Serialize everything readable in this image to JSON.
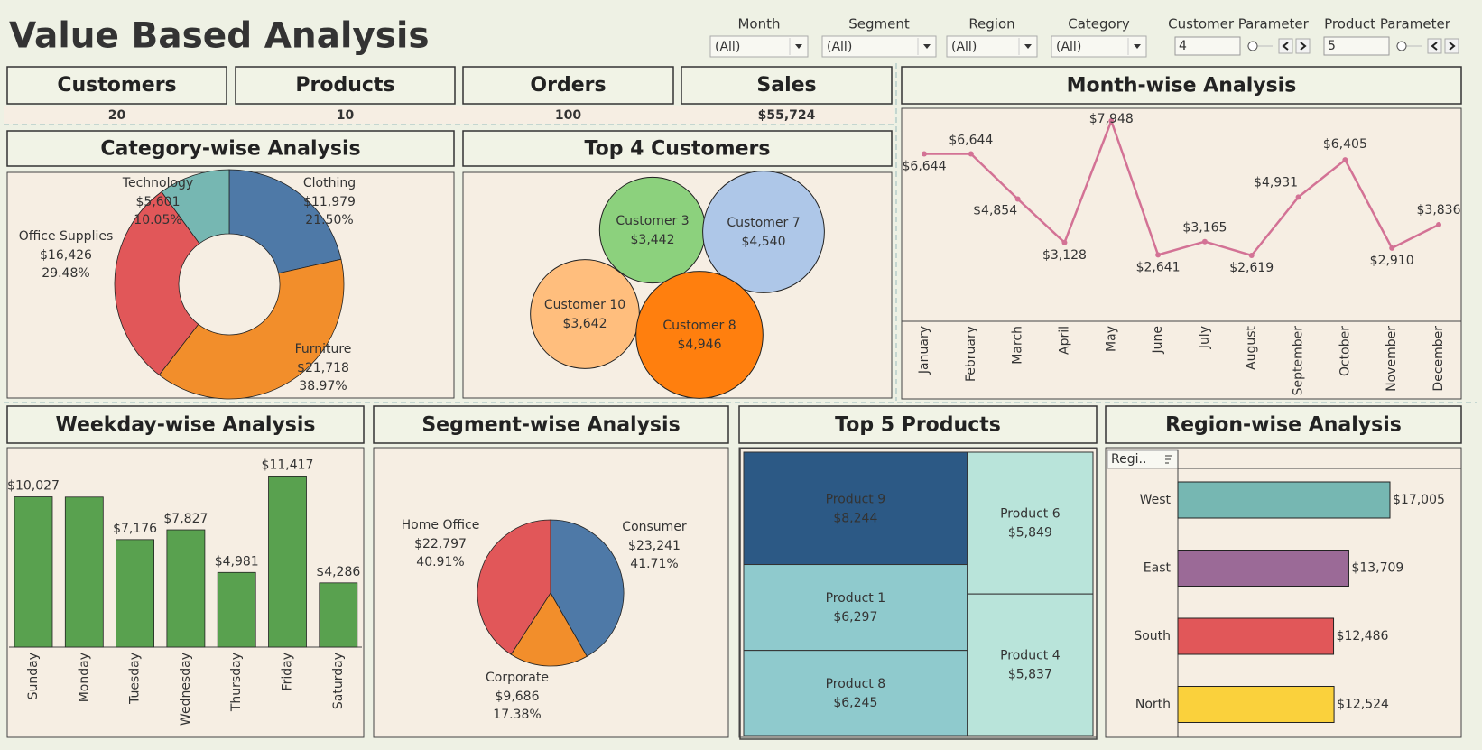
{
  "title": "Value Based Analysis",
  "filters": [
    {
      "label": "Month",
      "value": "(All)"
    },
    {
      "label": "Segment",
      "value": "(All)"
    },
    {
      "label": "Region",
      "value": "(All)"
    },
    {
      "label": "Category",
      "value": "(All)"
    }
  ],
  "parameters": [
    {
      "label": "Customer Parameter",
      "value": 4
    },
    {
      "label": "Product Parameter",
      "value": 5
    }
  ],
  "kpis": [
    {
      "label": "Customers",
      "value": 20
    },
    {
      "label": "Products",
      "value": 10
    },
    {
      "label": "Orders",
      "value": 100
    },
    {
      "label": "Sales",
      "value": 55724,
      "value_label": "$55,724"
    }
  ],
  "chart_data": [
    {
      "type": "pie",
      "donut": true,
      "title": "Category-wise Analysis",
      "categories": [
        "Clothing",
        "Furniture",
        "Office Supplies",
        "Technology"
      ],
      "values": [
        11979,
        21718,
        16426,
        5601
      ],
      "value_labels": [
        "$11,979",
        "$21,718",
        "$16,426",
        "$5,601"
      ],
      "percents": [
        21.5,
        38.97,
        29.48,
        10.05
      ],
      "percent_labels": [
        "21.50%",
        "38.97%",
        "29.48%",
        "10.05%"
      ],
      "colors": [
        "#4e79a7",
        "#f28e2b",
        "#e15759",
        "#76b7b2"
      ]
    },
    {
      "type": "bubble",
      "title": "Top 4 Customers",
      "categories": [
        "Customer 3",
        "Customer 7",
        "Customer 10",
        "Customer 8"
      ],
      "values": [
        3442,
        4540,
        3642,
        4946
      ],
      "value_labels": [
        "$3,442",
        "$4,540",
        "$3,642",
        "$4,946"
      ],
      "colors": [
        "#8cd17d",
        "#aec7e8",
        "#ffbe7d",
        "#ff7f0e"
      ]
    },
    {
      "type": "line",
      "title": "Month-wise Analysis",
      "categories": [
        "January",
        "February",
        "March",
        "April",
        "May",
        "June",
        "July",
        "August",
        "September",
        "October",
        "November",
        "December"
      ],
      "values": [
        6644,
        6644,
        4854,
        3128,
        7948,
        2641,
        3165,
        2619,
        4931,
        6405,
        2910,
        3836
      ],
      "value_labels": [
        "$6,644",
        "$6,644",
        "$4,854",
        "$3,128",
        "$7,948",
        "$2,641",
        "$3,165",
        "$2,619",
        "$4,931",
        "$6,405",
        "$2,910",
        "$3,836"
      ],
      "color": "#d37295"
    },
    {
      "type": "bar",
      "title": "Weekday-wise Analysis",
      "categories": [
        "Sunday",
        "Monday",
        "Tuesday",
        "Wednesday",
        "Thursday",
        "Friday",
        "Saturday"
      ],
      "values": [
        10027,
        10010,
        7176,
        7827,
        4981,
        11417,
        4286
      ],
      "value_labels": [
        "$10,027",
        null,
        "$7,176",
        "$7,827",
        "$4,981",
        "$11,417",
        "$4,286"
      ],
      "color": "#59a14f"
    },
    {
      "type": "pie",
      "donut": false,
      "title": "Segment-wise Analysis",
      "categories": [
        "Consumer",
        "Corporate",
        "Home Office"
      ],
      "values": [
        23241,
        9686,
        22797
      ],
      "value_labels": [
        "$23,241",
        "$9,686",
        "$22,797"
      ],
      "percents": [
        41.71,
        17.38,
        40.91
      ],
      "percent_labels": [
        "41.71%",
        "17.38%",
        "40.91%"
      ],
      "colors": [
        "#4e79a7",
        "#f28e2b",
        "#e15759"
      ]
    },
    {
      "type": "treemap",
      "title": "Top 5 Products",
      "categories": [
        "Product 9",
        "Product 1",
        "Product 8",
        "Product 6",
        "Product 4"
      ],
      "values": [
        8244,
        6297,
        6245,
        5849,
        5837
      ],
      "value_labels": [
        "$8,244",
        "$6,297",
        "$6,245",
        "$5,849",
        "$5,837"
      ],
      "colors": [
        "#2c5985",
        "#8fcacd",
        "#8fcacd",
        "#b9e4da",
        "#b9e4da"
      ]
    },
    {
      "type": "bar",
      "orientation": "horizontal",
      "title": "Region-wise Analysis",
      "y_header": "Regi..",
      "categories": [
        "West",
        "East",
        "South",
        "North"
      ],
      "values": [
        17005,
        13709,
        12486,
        12524
      ],
      "value_labels": [
        "$17,005",
        "$13,709",
        "$12,486",
        "$12,524"
      ],
      "colors": [
        "#76b7b2",
        "#9b6a97",
        "#e15759",
        "#fad13c"
      ]
    }
  ]
}
